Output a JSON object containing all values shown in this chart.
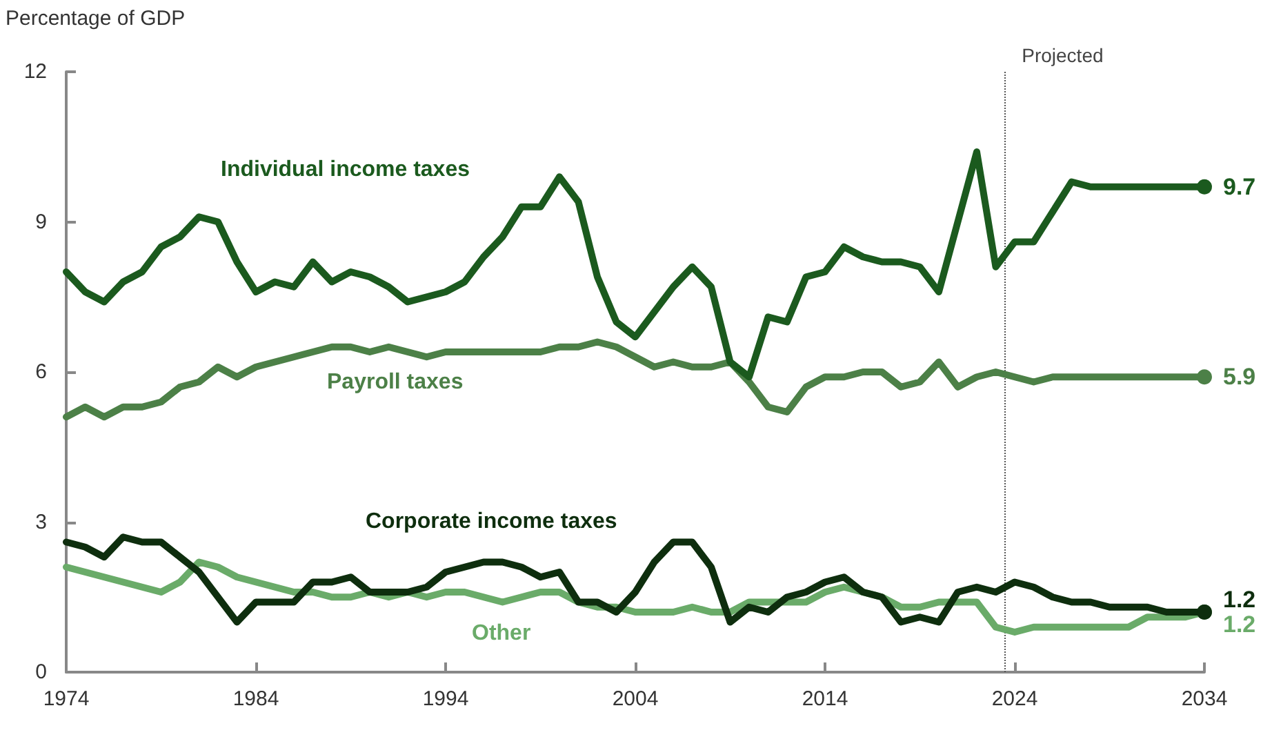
{
  "chart_data": {
    "type": "line",
    "ylabel": "Percentage of GDP",
    "x": [
      1974,
      1975,
      1976,
      1977,
      1978,
      1979,
      1980,
      1981,
      1982,
      1983,
      1984,
      1985,
      1986,
      1987,
      1988,
      1989,
      1990,
      1991,
      1992,
      1993,
      1994,
      1995,
      1996,
      1997,
      1998,
      1999,
      2000,
      2001,
      2002,
      2003,
      2004,
      2005,
      2006,
      2007,
      2008,
      2009,
      2010,
      2011,
      2012,
      2013,
      2014,
      2015,
      2016,
      2017,
      2018,
      2019,
      2020,
      2021,
      2022,
      2023,
      2024,
      2025,
      2026,
      2027,
      2028,
      2029,
      2030,
      2031,
      2032,
      2033,
      2034
    ],
    "series": [
      {
        "name": "Individual income taxes",
        "color": "#1b5a1e",
        "values": [
          8.0,
          7.6,
          7.4,
          7.8,
          8.0,
          8.5,
          8.7,
          9.1,
          9.0,
          8.2,
          7.6,
          7.8,
          7.7,
          8.2,
          7.8,
          8.0,
          7.9,
          7.7,
          7.4,
          7.5,
          7.6,
          7.8,
          8.3,
          8.7,
          9.3,
          9.3,
          9.9,
          9.4,
          7.9,
          7.0,
          6.7,
          7.2,
          7.7,
          8.1,
          7.7,
          6.2,
          5.9,
          7.1,
          7.0,
          7.9,
          8.0,
          8.5,
          8.3,
          8.2,
          8.2,
          8.1,
          7.6,
          9.0,
          10.4,
          8.1,
          8.6,
          8.6,
          9.2,
          9.8,
          9.7,
          9.7,
          9.7,
          9.7,
          9.7,
          9.7,
          9.7
        ],
        "value_labels": [
          null,
          null,
          null,
          null,
          null,
          null,
          null,
          null,
          null,
          null,
          null,
          null,
          null,
          null,
          null,
          null,
          null,
          null,
          null,
          null,
          null,
          null,
          null,
          null,
          null,
          null,
          null,
          null,
          null,
          null,
          null,
          null,
          null,
          null,
          null,
          null,
          null,
          null,
          null,
          null,
          null,
          null,
          null,
          null,
          null,
          null,
          null,
          null,
          null,
          null,
          null,
          null,
          null,
          null,
          null,
          null,
          null,
          null,
          null,
          null,
          "9.7"
        ]
      },
      {
        "name": "Payroll taxes",
        "color": "#4c8047",
        "values": [
          5.1,
          5.3,
          5.1,
          5.3,
          5.3,
          5.4,
          5.7,
          5.8,
          6.1,
          5.9,
          6.1,
          6.2,
          6.3,
          6.4,
          6.5,
          6.5,
          6.4,
          6.5,
          6.4,
          6.3,
          6.4,
          6.4,
          6.4,
          6.4,
          6.4,
          6.4,
          6.5,
          6.5,
          6.6,
          6.5,
          6.3,
          6.1,
          6.2,
          6.1,
          6.1,
          6.2,
          5.8,
          5.3,
          5.2,
          5.7,
          5.9,
          5.9,
          6.0,
          6.0,
          5.7,
          5.8,
          6.2,
          5.7,
          5.9,
          6.0,
          5.9,
          5.8,
          5.9,
          5.9,
          5.9,
          5.9,
          5.9,
          5.9,
          5.9,
          5.9,
          5.9
        ],
        "value_labels": [
          null,
          null,
          null,
          null,
          null,
          null,
          null,
          null,
          null,
          null,
          null,
          null,
          null,
          null,
          null,
          null,
          null,
          null,
          null,
          null,
          null,
          null,
          null,
          null,
          null,
          null,
          null,
          null,
          null,
          null,
          null,
          null,
          null,
          null,
          null,
          null,
          null,
          null,
          null,
          null,
          null,
          null,
          null,
          null,
          null,
          null,
          null,
          null,
          null,
          null,
          null,
          null,
          null,
          null,
          null,
          null,
          null,
          null,
          null,
          null,
          "5.9"
        ]
      },
      {
        "name": "Corporate income taxes",
        "color": "#0e2e0e",
        "values": [
          2.6,
          2.5,
          2.3,
          2.7,
          2.6,
          2.6,
          2.3,
          2.0,
          1.5,
          1.0,
          1.4,
          1.4,
          1.4,
          1.8,
          1.8,
          1.9,
          1.6,
          1.6,
          1.6,
          1.7,
          2.0,
          2.1,
          2.2,
          2.2,
          2.1,
          1.9,
          2.0,
          1.4,
          1.4,
          1.2,
          1.6,
          2.2,
          2.6,
          2.6,
          2.1,
          1.0,
          1.3,
          1.2,
          1.5,
          1.6,
          1.8,
          1.9,
          1.6,
          1.5,
          1.0,
          1.1,
          1.0,
          1.6,
          1.7,
          1.6,
          1.8,
          1.7,
          1.5,
          1.4,
          1.4,
          1.3,
          1.3,
          1.3,
          1.2,
          1.2,
          1.2
        ],
        "value_labels": [
          null,
          null,
          null,
          null,
          null,
          null,
          null,
          null,
          null,
          null,
          null,
          null,
          null,
          null,
          null,
          null,
          null,
          null,
          null,
          null,
          null,
          null,
          null,
          null,
          null,
          null,
          null,
          null,
          null,
          null,
          null,
          null,
          null,
          null,
          null,
          null,
          null,
          null,
          null,
          null,
          null,
          null,
          null,
          null,
          null,
          null,
          null,
          null,
          null,
          null,
          null,
          null,
          null,
          null,
          null,
          null,
          null,
          null,
          null,
          null,
          "1.2"
        ]
      },
      {
        "name": "Other",
        "color": "#6aab69",
        "values": [
          2.1,
          2.0,
          1.9,
          1.8,
          1.7,
          1.6,
          1.8,
          2.2,
          2.1,
          1.9,
          1.8,
          1.7,
          1.6,
          1.6,
          1.5,
          1.5,
          1.6,
          1.5,
          1.6,
          1.5,
          1.6,
          1.6,
          1.5,
          1.4,
          1.5,
          1.6,
          1.6,
          1.4,
          1.3,
          1.3,
          1.2,
          1.2,
          1.2,
          1.3,
          1.2,
          1.2,
          1.4,
          1.4,
          1.4,
          1.4,
          1.6,
          1.7,
          1.6,
          1.5,
          1.3,
          1.3,
          1.4,
          1.4,
          1.4,
          0.9,
          0.8,
          0.9,
          0.9,
          0.9,
          0.9,
          0.9,
          0.9,
          1.1,
          1.1,
          1.1,
          1.2
        ],
        "value_labels": [
          null,
          null,
          null,
          null,
          null,
          null,
          null,
          null,
          null,
          null,
          null,
          null,
          null,
          null,
          null,
          null,
          null,
          null,
          null,
          null,
          null,
          null,
          null,
          null,
          null,
          null,
          null,
          null,
          null,
          null,
          null,
          null,
          null,
          null,
          null,
          null,
          null,
          null,
          null,
          null,
          null,
          null,
          null,
          null,
          null,
          null,
          null,
          null,
          null,
          null,
          null,
          null,
          null,
          null,
          null,
          null,
          null,
          null,
          null,
          null,
          "1.2"
        ]
      }
    ],
    "xlim": [
      1974,
      2034
    ],
    "xticks": [
      1974,
      1984,
      1994,
      2004,
      2014,
      2024,
      2034
    ],
    "ylim": [
      0,
      12
    ],
    "yticks": [
      0,
      3,
      6,
      9,
      12
    ],
    "ref_lines": [
      {
        "axis": "x",
        "value": 2023.5,
        "label": "Projected",
        "color": "#555555",
        "line_style": "dotted"
      }
    ],
    "grid": false,
    "legend": false,
    "marker": "none",
    "line_style": "solid"
  }
}
